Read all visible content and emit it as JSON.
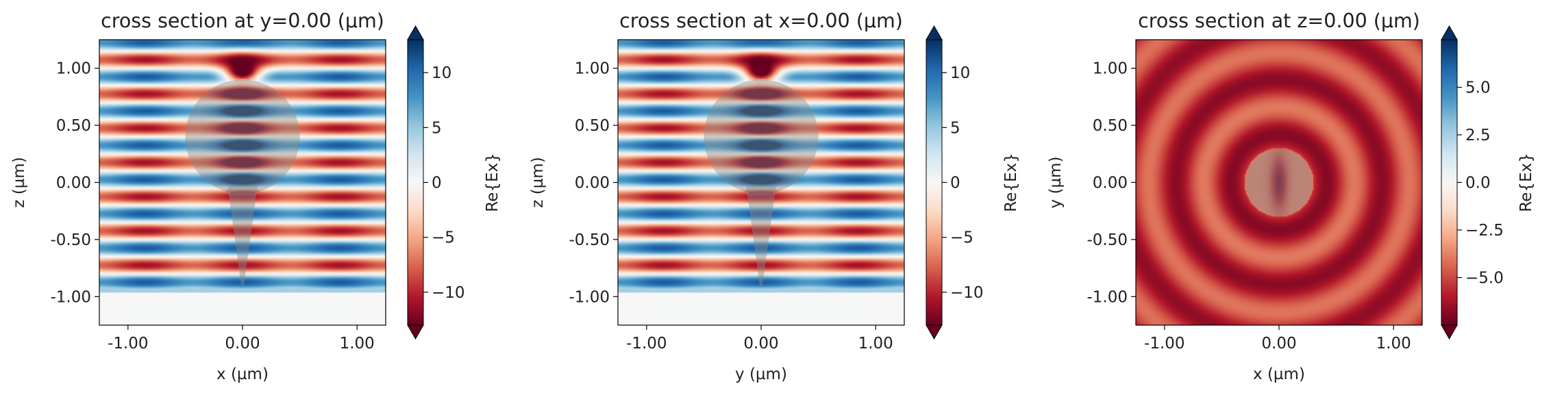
{
  "chart_data": [
    {
      "type": "heatmap",
      "title": "cross section at y=0.00 (µm)",
      "xlabel": "x (µm)",
      "ylabel": "z (µm)",
      "xlim": [
        -1.25,
        1.25
      ],
      "ylim": [
        -1.25,
        1.25
      ],
      "xticks": [
        -1.0,
        0.0,
        1.0
      ],
      "xtick_labels": [
        "-1.00",
        "0.00",
        "1.00"
      ],
      "yticks": [
        -1.0,
        -0.5,
        0.0,
        0.5,
        1.0
      ],
      "ytick_labels": [
        "-1.00",
        "-0.50",
        "0.00",
        "0.50",
        "1.00"
      ],
      "colorbar": {
        "label": "Re{Ex}",
        "vmin": -13,
        "vmax": 13,
        "ticks": [
          -10,
          -5,
          0,
          5,
          10
        ],
        "tick_labels": [
          "−10",
          "−5",
          "0",
          "5",
          "10"
        ],
        "extend": "both"
      },
      "colormap": [
        "#67001f",
        "#b2182b",
        "#d6604d",
        "#f4a582",
        "#fddbc7",
        "#f7f7f7",
        "#d1e5f0",
        "#92c5de",
        "#4393c3",
        "#2166ac",
        "#053061"
      ],
      "field": "standing-wave",
      "structure": {
        "sphere_center": [
          0,
          0.4
        ],
        "sphere_radius": 0.5,
        "cone_top_halfwidth": 0.13,
        "cone_tip": [
          0,
          -0.9
        ]
      }
    },
    {
      "type": "heatmap",
      "title": "cross section at x=0.00 (µm)",
      "xlabel": "y (µm)",
      "ylabel": "z (µm)",
      "xlim": [
        -1.25,
        1.25
      ],
      "ylim": [
        -1.25,
        1.25
      ],
      "xticks": [
        -1.0,
        0.0,
        1.0
      ],
      "xtick_labels": [
        "-1.00",
        "0.00",
        "1.00"
      ],
      "yticks": [
        -1.0,
        -0.5,
        0.0,
        0.5,
        1.0
      ],
      "ytick_labels": [
        "-1.00",
        "-0.50",
        "0.00",
        "0.50",
        "1.00"
      ],
      "colorbar": {
        "label": "Re{Ex}",
        "vmin": -13,
        "vmax": 13,
        "ticks": [
          -10,
          -5,
          0,
          5,
          10
        ],
        "tick_labels": [
          "−10",
          "−5",
          "0",
          "5",
          "10"
        ],
        "extend": "both"
      },
      "colormap": [
        "#67001f",
        "#b2182b",
        "#d6604d",
        "#f4a582",
        "#fddbc7",
        "#f7f7f7",
        "#d1e5f0",
        "#92c5de",
        "#4393c3",
        "#2166ac",
        "#053061"
      ],
      "field": "standing-wave",
      "structure": {
        "sphere_center": [
          0,
          0.4
        ],
        "sphere_radius": 0.5,
        "cone_top_halfwidth": 0.13,
        "cone_tip": [
          0,
          -0.9
        ]
      }
    },
    {
      "type": "heatmap",
      "title": "cross section at z=0.00 (µm)",
      "xlabel": "x (µm)",
      "ylabel": "y (µm)",
      "xlim": [
        -1.25,
        1.25
      ],
      "ylim": [
        -1.25,
        1.25
      ],
      "xticks": [
        -1.0,
        0.0,
        1.0
      ],
      "xtick_labels": [
        "-1.00",
        "0.00",
        "1.00"
      ],
      "yticks": [
        -1.0,
        -0.5,
        0.0,
        0.5,
        1.0
      ],
      "ytick_labels": [
        "-1.00",
        "-0.50",
        "0.00",
        "0.50",
        "1.00"
      ],
      "colorbar": {
        "label": "Re{Ex}",
        "vmin": -7.5,
        "vmax": 7.5,
        "ticks": [
          -5.0,
          -2.5,
          0.0,
          2.5,
          5.0
        ],
        "tick_labels": [
          "−5.0",
          "−2.5",
          "0.0",
          "2.5",
          "5.0"
        ],
        "extend": "both"
      },
      "colormap": [
        "#67001f",
        "#b2182b",
        "#d6604d",
        "#f4a582",
        "#fddbc7",
        "#f7f7f7",
        "#d1e5f0",
        "#92c5de",
        "#4393c3",
        "#2166ac",
        "#053061"
      ],
      "field": "radial-rings",
      "structure": {
        "disk_center": [
          0,
          0
        ],
        "disk_radius": 0.29
      }
    }
  ]
}
